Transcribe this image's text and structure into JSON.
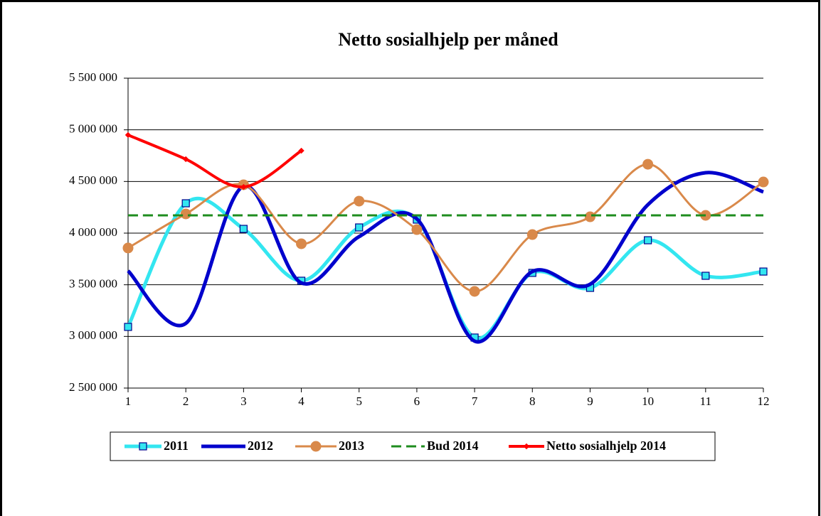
{
  "chart_data": {
    "type": "line",
    "title": "Netto sosialhjelp per måned",
    "x": [
      1,
      2,
      3,
      4,
      5,
      6,
      7,
      8,
      9,
      10,
      11,
      12
    ],
    "xlim": [
      1,
      12
    ],
    "xticks": [
      1,
      2,
      3,
      4,
      5,
      6,
      7,
      8,
      9,
      10,
      11,
      12
    ],
    "ylim": [
      2500000,
      5500000
    ],
    "yticks": [
      {
        "value": 2500000,
        "label": "2 500 000"
      },
      {
        "value": 3000000,
        "label": "3 000 000"
      },
      {
        "value": 3500000,
        "label": "3 500 000"
      },
      {
        "value": 4000000,
        "label": "4 000 000"
      },
      {
        "value": 4500000,
        "label": "4 500 000"
      },
      {
        "value": 5000000,
        "label": "5 000 000"
      },
      {
        "value": 5500000,
        "label": "5 500 000"
      }
    ],
    "grid": true,
    "smooth": true,
    "legend": "bottom",
    "series": [
      {
        "name": "2011",
        "color": "#33e6f0",
        "marker": "square",
        "values": [
          3092000,
          4289000,
          4041000,
          3539000,
          4055000,
          4131000,
          2989000,
          3615000,
          3470000,
          3931000,
          3587000,
          3628000
        ]
      },
      {
        "name": "2012",
        "color": "#0000cc",
        "marker": "none",
        "values": [
          3635000,
          3126000,
          4454000,
          3518000,
          3966000,
          4138000,
          2954000,
          3628000,
          3505000,
          4275000,
          4585000,
          4399000
        ]
      },
      {
        "name": "2013",
        "color": "#d9894a",
        "marker": "circle",
        "values": [
          3856000,
          4186000,
          4468000,
          3897000,
          4310000,
          4034000,
          3436000,
          3986000,
          4158000,
          4667000,
          4172000,
          4495000
        ]
      },
      {
        "name": "Bud 2014",
        "color": "#1e8c1e",
        "marker": "none",
        "dash": true,
        "values": [
          4172000,
          4172000,
          4172000,
          4172000,
          4172000,
          4172000,
          4172000,
          4172000,
          4172000,
          4172000,
          4172000,
          4172000
        ]
      },
      {
        "name": "Netto sosialhjelp 2014",
        "color": "#ff0000",
        "marker": "diamond",
        "values": [
          4950000,
          4716000,
          4447000,
          4798000,
          null,
          null,
          null,
          null,
          null,
          null,
          null,
          null
        ]
      }
    ]
  }
}
